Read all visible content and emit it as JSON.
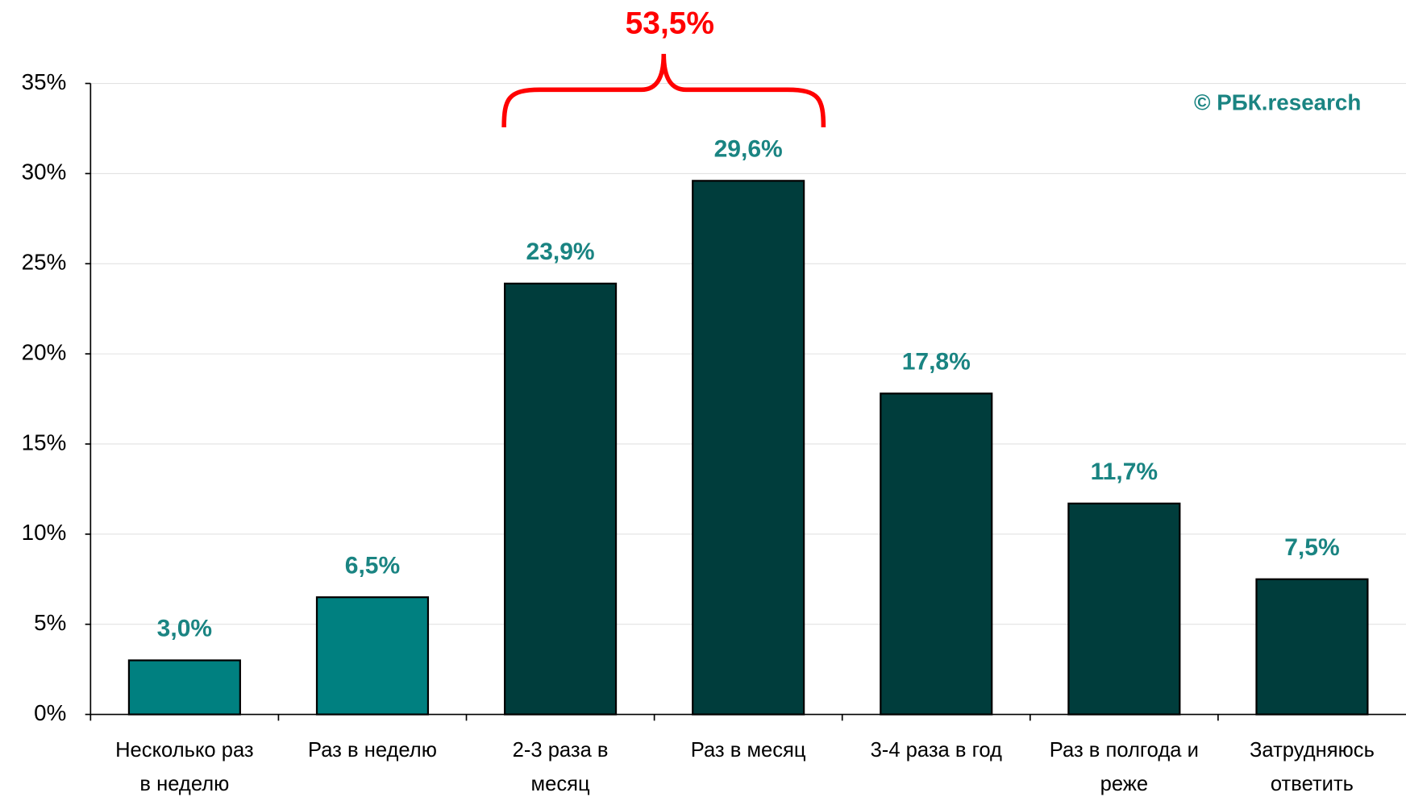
{
  "chart_data": {
    "type": "bar",
    "categories": [
      [
        "Несколько раз",
        "в неделю"
      ],
      [
        "Раз в неделю"
      ],
      [
        "2-3 раза в",
        "месяц"
      ],
      [
        "Раз в месяц"
      ],
      [
        "3-4 раза в год"
      ],
      [
        "Раз в полгода и",
        "реже"
      ],
      [
        "Затрудняюсь",
        "ответить"
      ]
    ],
    "values": [
      3.0,
      6.5,
      23.9,
      29.6,
      17.8,
      11.7,
      7.5
    ],
    "value_labels": [
      "3,0%",
      "6,5%",
      "23,9%",
      "29,6%",
      "17,8%",
      "11,7%",
      "7,5%"
    ],
    "colors": [
      "#008080",
      "#008080",
      "#003d3c",
      "#003d3c",
      "#003d3c",
      "#003d3c",
      "#003d3c"
    ],
    "ylim": [
      0,
      35
    ],
    "yticks": [
      {
        "value": 0,
        "label": "0%"
      },
      {
        "value": 5,
        "label": "5%"
      },
      {
        "value": 10,
        "label": "10%"
      },
      {
        "value": 15,
        "label": "15%"
      },
      {
        "value": 20,
        "label": "20%"
      },
      {
        "value": 25,
        "label": "25%"
      },
      {
        "value": 30,
        "label": "30%"
      },
      {
        "value": 35,
        "label": "35%"
      }
    ],
    "grid": true,
    "annotation": "53,5%",
    "source": "© РБК.research"
  }
}
